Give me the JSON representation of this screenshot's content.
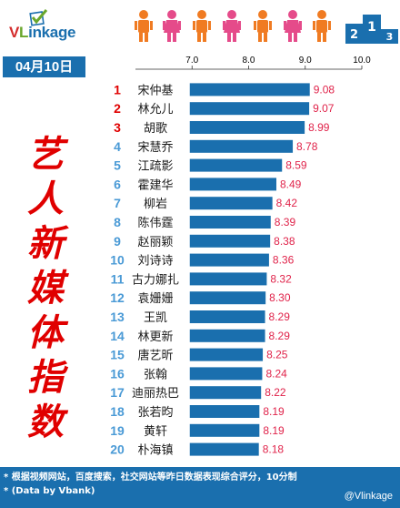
{
  "header": {
    "logo_v": "V",
    "logo_l": "L",
    "logo_rest": "inkage",
    "date": "04月10日",
    "podium_digits": [
      "2",
      "1",
      "3"
    ]
  },
  "side_title": "艺人新媒体指数",
  "footer": {
    "note_1": "* 根据视频网站，百度搜索，社交网站等昨日数据表现综合评分，10分制",
    "note_2": "* (Data by Vbank)",
    "credit": "@Vlinkage"
  },
  "colors": {
    "brand_blue": "#1a6fae",
    "bar": "#1a6fae",
    "value_text": "#e0234a",
    "rank_top3": "#e00000",
    "rank_rest": "#4a9ad6",
    "figure_orange": "#f07b22",
    "figure_pink": "#e54b8a"
  },
  "chart_data": {
    "type": "bar",
    "orientation": "horizontal",
    "xlim": [
      6.0,
      10.0
    ],
    "x_ticks": [
      "7.0",
      "8.0",
      "9.0",
      "10.0"
    ],
    "grid": false,
    "ranks": [
      "1",
      "2",
      "3",
      "4",
      "5",
      "6",
      "7",
      "8",
      "9",
      "10",
      "11",
      "12",
      "13",
      "14",
      "15",
      "16",
      "17",
      "18",
      "19",
      "20"
    ],
    "categories": [
      "宋仲基",
      "林允儿",
      "胡歌",
      "宋慧乔",
      "江疏影",
      "霍建华",
      "柳岩",
      "陈伟霆",
      "赵丽颖",
      "刘诗诗",
      "古力娜扎",
      "袁姗姗",
      "王凯",
      "林更新",
      "唐艺昕",
      "张翰",
      "迪丽热巴",
      "张若昀",
      "黄轩",
      "朴海镇"
    ],
    "values": [
      9.08,
      9.07,
      8.99,
      8.78,
      8.59,
      8.49,
      8.42,
      8.39,
      8.38,
      8.36,
      8.32,
      8.3,
      8.29,
      8.29,
      8.25,
      8.24,
      8.22,
      8.19,
      8.19,
      8.18
    ],
    "value_labels": [
      "9.08",
      "9.07",
      "8.99",
      "8.78",
      "8.59",
      "8.49",
      "8.42",
      "8.39",
      "8.38",
      "8.36",
      "8.32",
      "8.30",
      "8.29",
      "8.29",
      "8.25",
      "8.24",
      "8.22",
      "8.19",
      "8.19",
      "8.18"
    ]
  }
}
